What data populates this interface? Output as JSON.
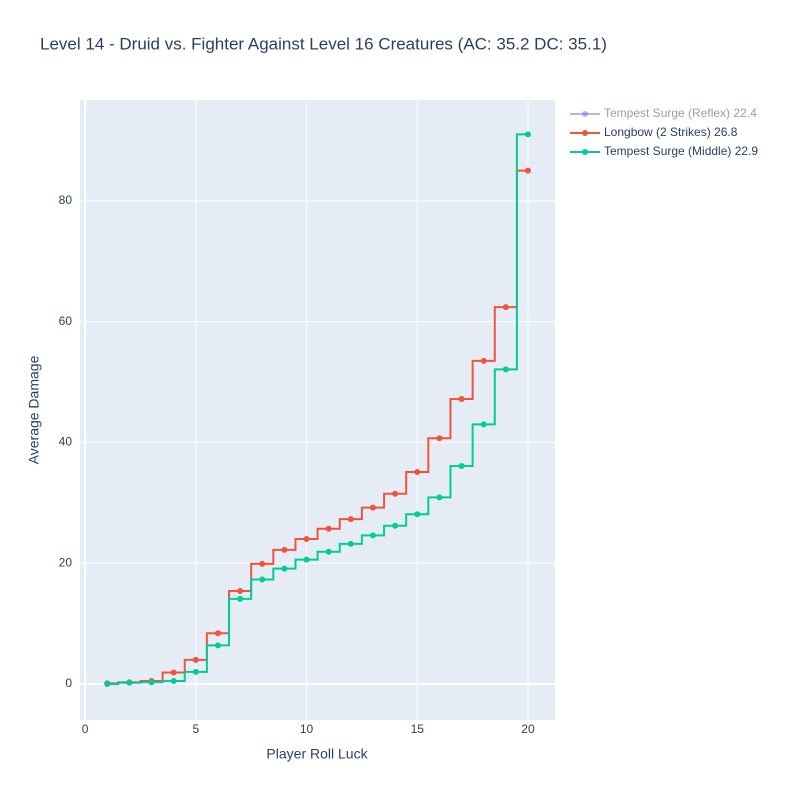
{
  "chart_data": {
    "type": "line",
    "line_shape": "hvh",
    "title": "Level 14 - Druid vs. Fighter Against Level 16 Creatures (AC: 35.2 DC: 35.1)",
    "x_label": "Player Roll Luck",
    "y_label": "Average Damage",
    "x": [
      1,
      2,
      3,
      4,
      5,
      6,
      7,
      8,
      9,
      10,
      11,
      12,
      13,
      14,
      15,
      16,
      17,
      18,
      19,
      20
    ],
    "series": [
      {
        "name": "Tempest Surge (Reflex) 22.4",
        "color": "#636efa",
        "visible": false,
        "values": [
          null,
          null,
          null,
          null,
          null,
          null,
          null,
          null,
          null,
          null,
          null,
          null,
          null,
          null,
          null,
          null,
          null,
          null,
          null,
          null
        ]
      },
      {
        "name": "Longbow (2 Strikes) 26.8",
        "color": "#ef553b",
        "visible": true,
        "values": [
          0.1,
          0.3,
          0.5,
          1.9,
          4.0,
          8.4,
          15.4,
          19.9,
          22.2,
          24.0,
          25.7,
          27.3,
          29.2,
          31.5,
          35.1,
          40.7,
          47.2,
          53.5,
          62.4,
          85.0
        ]
      },
      {
        "name": "Tempest Surge (Middle) 22.9",
        "color": "#00cc96",
        "visible": true,
        "values": [
          0,
          0.2,
          0.3,
          0.5,
          2.0,
          6.4,
          14.1,
          17.3,
          19.1,
          20.6,
          21.9,
          23.2,
          24.6,
          26.2,
          28.1,
          30.9,
          36.1,
          43.0,
          52.1,
          91.0
        ]
      }
    ],
    "xlim": [
      -0.23,
      21.22
    ],
    "xticks": [
      0,
      5,
      10,
      15,
      20
    ],
    "ylim": [
      -5.96,
      96.7
    ],
    "yticks": [
      0,
      20,
      40,
      60,
      80
    ],
    "grid": true
  }
}
